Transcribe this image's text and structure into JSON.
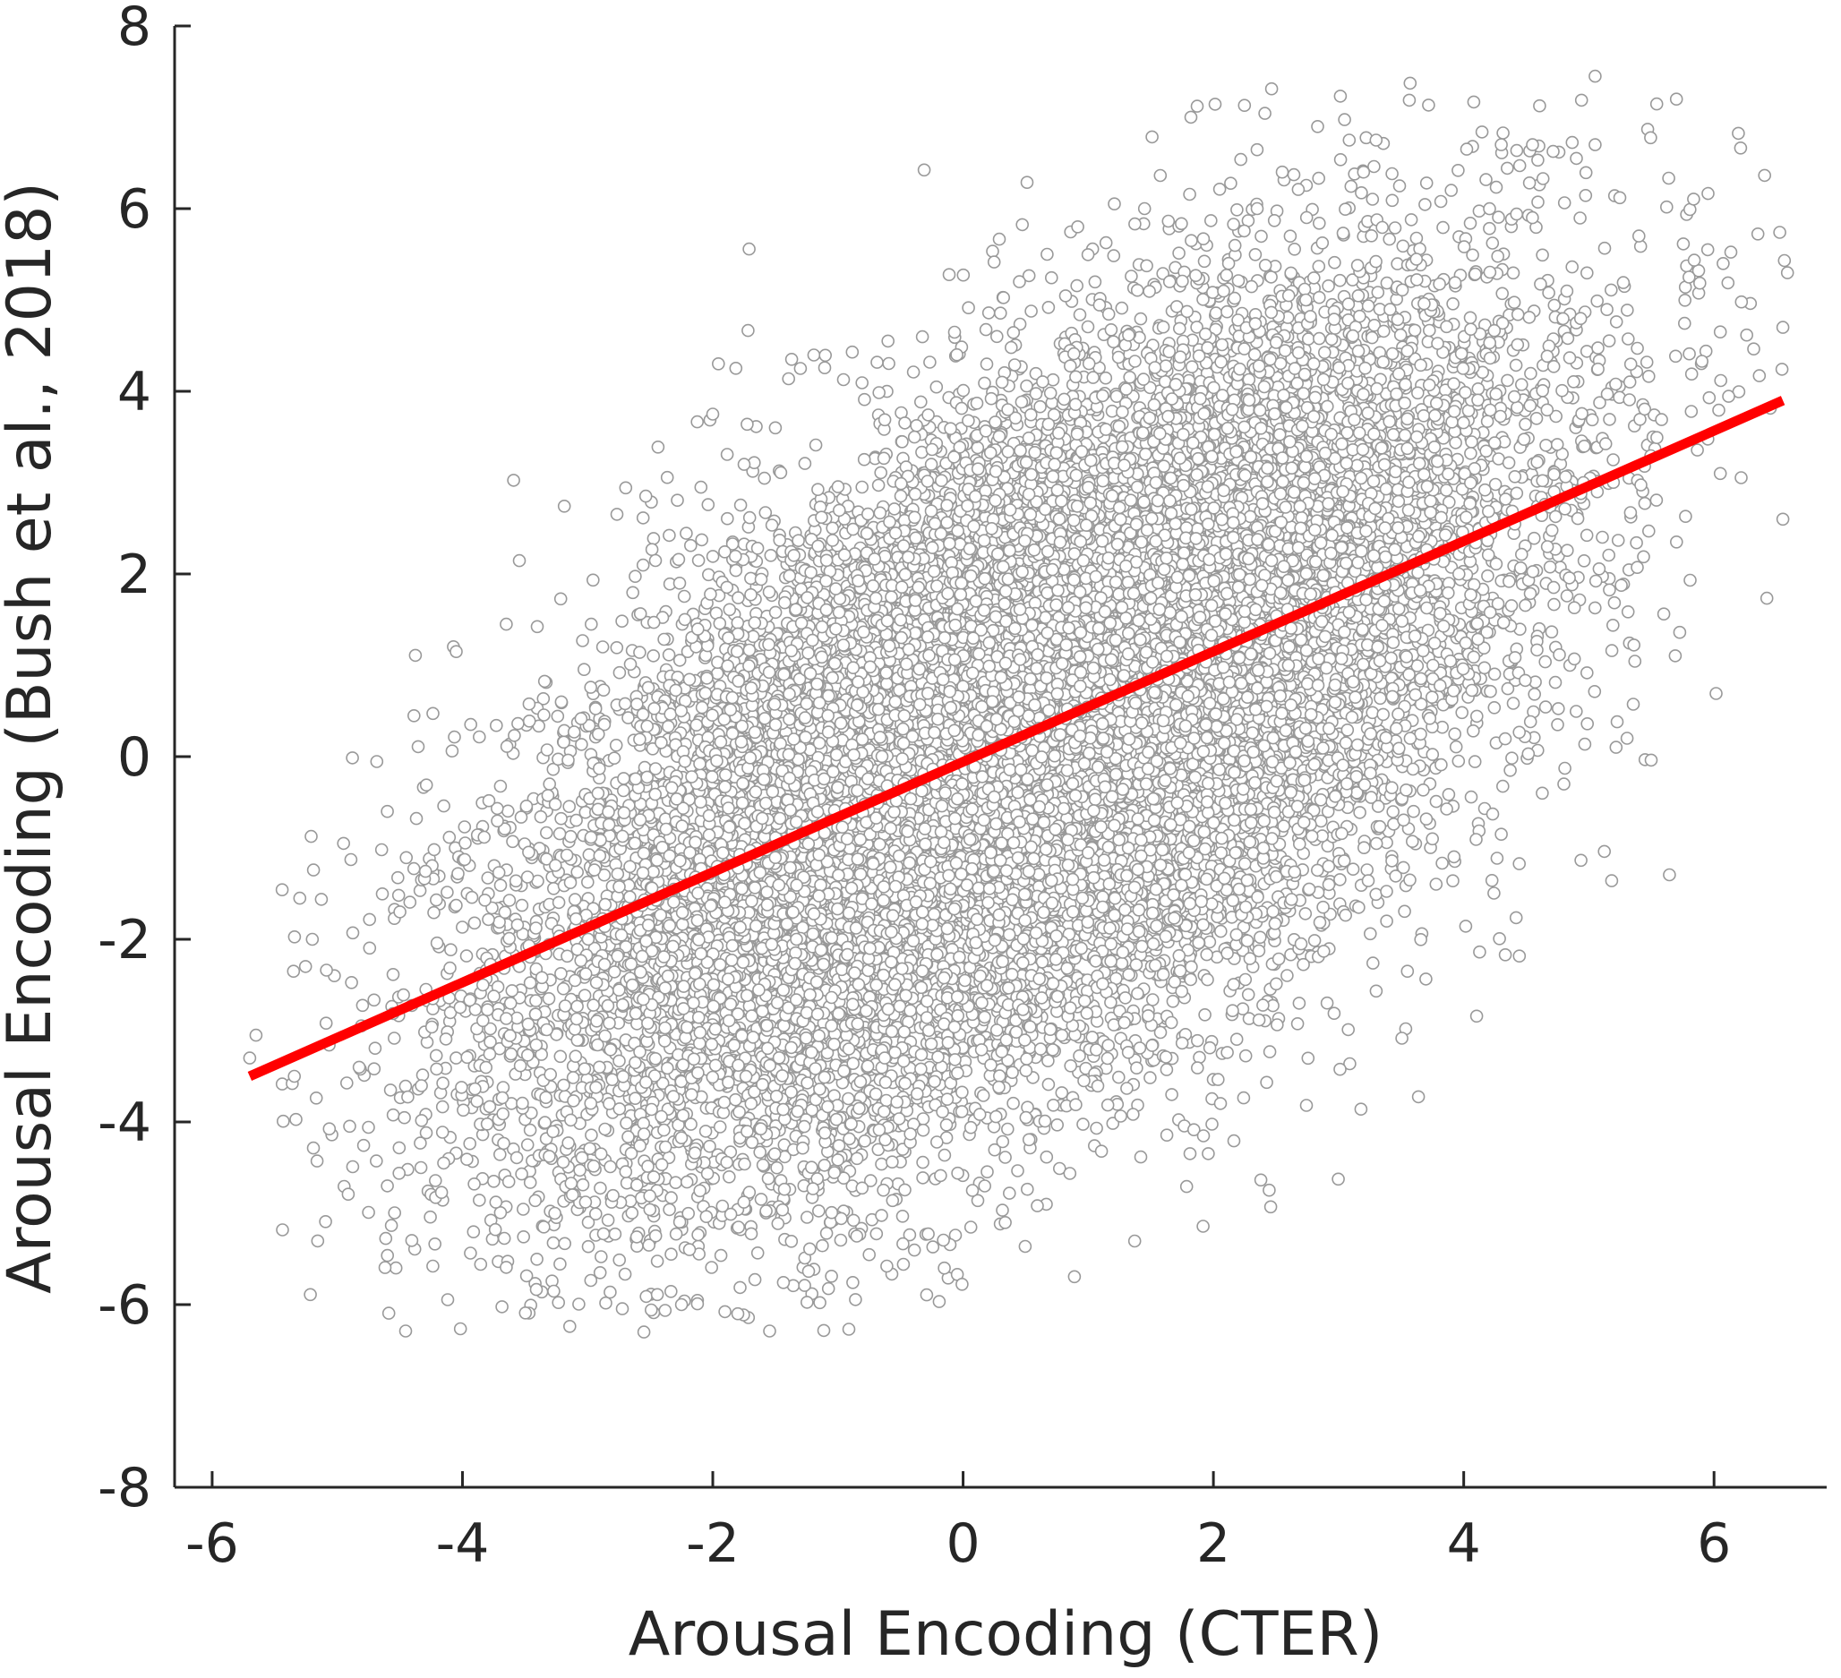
{
  "chart_data": {
    "type": "scatter",
    "title": "",
    "xlabel": "Arousal Encoding (CTER)",
    "ylabel": "Arousal Encoding (Bush et al., 2018)",
    "xlim": [
      -6.3,
      6.9
    ],
    "ylim": [
      -8,
      8
    ],
    "xticks": [
      -6,
      -4,
      -2,
      0,
      2,
      4,
      6
    ],
    "yticks": [
      -8,
      -6,
      -4,
      -2,
      0,
      2,
      4,
      6,
      8
    ],
    "xtick_labels": [
      "-6",
      "-4",
      "-2",
      "0",
      "2",
      "4",
      "6"
    ],
    "ytick_labels": [
      "-8",
      "-6",
      "-4",
      "-2",
      "0",
      "2",
      "4",
      "6",
      "8"
    ],
    "grid": false,
    "legend": "none",
    "marker_edge_color": "#999999",
    "marker_face_color": "#ffffff",
    "fit_line_color": "#ff0000",
    "axis_color": "#262626",
    "scatter": {
      "approx_point_count": 20000,
      "x_mean": 0.5,
      "x_sd": 1.9,
      "y_mean": 0.2,
      "y_sd": 2.25,
      "correlation": 0.6
    },
    "outliers": [
      [
        -5.7,
        -3.3
      ],
      [
        -5.65,
        -3.05
      ],
      [
        -5.3,
        -1.55
      ],
      [
        -5.35,
        -2.35
      ],
      [
        -5.2,
        -2.0
      ],
      [
        -4.95,
        -0.95
      ],
      [
        -4.6,
        -0.6
      ],
      [
        -4.6,
        -4.7
      ],
      [
        -4.5,
        -1.7
      ],
      [
        -4.15,
        -4.45
      ],
      [
        -4.05,
        1.15
      ],
      [
        -3.75,
        -4.65
      ],
      [
        -3.65,
        1.45
      ],
      [
        -3.35,
        -5.15
      ],
      [
        -2.9,
        -5.65
      ],
      [
        -2.55,
        -6.3
      ],
      [
        -2.25,
        -6.0
      ],
      [
        -2.0,
        3.75
      ],
      [
        -1.8,
        -6.1
      ],
      [
        -1.75,
        3.2
      ],
      [
        -1.5,
        3.6
      ],
      [
        -1.3,
        4.25
      ],
      [
        -0.85,
        -5.25
      ],
      [
        -0.6,
        4.55
      ],
      [
        -0.15,
        -5.6
      ],
      [
        -0.05,
        4.4
      ],
      [
        0.45,
        5.2
      ],
      [
        1.45,
        6.0
      ],
      [
        1.65,
        5.2
      ],
      [
        2.35,
        6.0
      ],
      [
        2.55,
        6.4
      ],
      [
        2.7,
        -2.05
      ],
      [
        3.2,
        6.4
      ],
      [
        3.3,
        6.75
      ],
      [
        3.55,
        -2.35
      ],
      [
        3.75,
        -0.9
      ],
      [
        3.9,
        6.2
      ],
      [
        4.3,
        -0.85
      ],
      [
        4.3,
        6.7
      ],
      [
        4.55,
        6.7
      ],
      [
        4.75,
        0.35
      ],
      [
        4.8,
        -0.3
      ],
      [
        4.9,
        6.55
      ],
      [
        5.05,
        7.45
      ],
      [
        5.05,
        6.7
      ],
      [
        5.4,
        5.7
      ],
      [
        5.7,
        2.35
      ],
      [
        5.8,
        5.25
      ],
      [
        5.95,
        5.55
      ],
      [
        6.05,
        4.65
      ],
      [
        6.05,
        3.1
      ],
      [
        6.55,
        4.7
      ],
      [
        6.55,
        2.6
      ]
    ],
    "fit_line": {
      "x": [
        -5.7,
        6.55
      ],
      "y": [
        -3.5,
        3.9
      ]
    }
  }
}
